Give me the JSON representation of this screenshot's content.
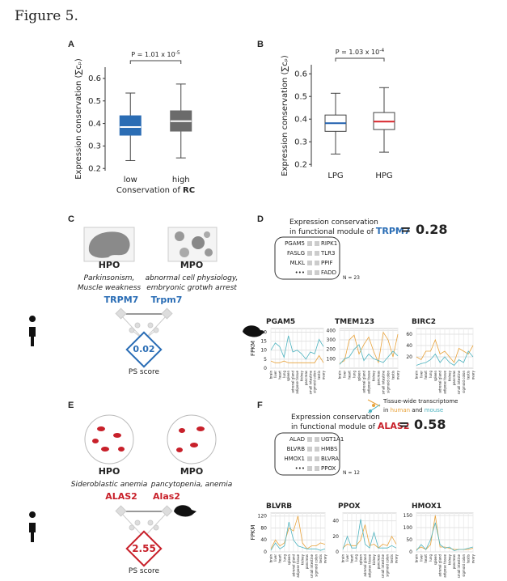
{
  "figure_title": "Figure 5.",
  "chart_data": [
    {
      "type": "box",
      "panel": "A",
      "p_value": "P = 1.01 x 10",
      "p_exponent": "-5",
      "ylabel": "Expression conservation (∑cₚ)",
      "xlabel": "Conservation of",
      "xlabel_bold": "RC",
      "categories": [
        "low",
        "high"
      ],
      "boxes": [
        {
          "whisker_low": 0.235,
          "q1": 0.348,
          "median": 0.384,
          "q3": 0.434,
          "whisker_high": 0.535,
          "fill": "#2b6db4",
          "median_color": "#ffffff"
        },
        {
          "whisker_low": 0.247,
          "q1": 0.366,
          "median": 0.41,
          "q3": 0.456,
          "whisker_high": 0.575,
          "fill": "#6b6b6b",
          "median_color": "#ffffff"
        }
      ],
      "ylim": [
        0.19,
        0.65
      ],
      "yticks": [
        0.2,
        0.3,
        0.4,
        0.5,
        0.6
      ]
    },
    {
      "type": "box",
      "panel": "B",
      "p_value": "P = 1.03 x 10",
      "p_exponent": "-4",
      "ylabel": "Expression conservation (∑cₚ)",
      "categories": [
        "LPG",
        "HPG"
      ],
      "boxes": [
        {
          "whisker_low": 0.246,
          "q1": 0.346,
          "median": 0.382,
          "q3": 0.418,
          "whisker_high": 0.514,
          "fill": "#ffffff",
          "median_color": "#1f5fae"
        },
        {
          "whisker_low": 0.254,
          "q1": 0.354,
          "median": 0.389,
          "q3": 0.429,
          "whisker_high": 0.539,
          "fill": "#ffffff",
          "median_color": "#d7262b"
        }
      ],
      "ylim": [
        0.19,
        0.64
      ],
      "yticks": [
        0.2,
        0.3,
        0.4,
        0.5,
        0.6
      ]
    },
    {
      "type": "line",
      "title": "PGAM5",
      "ylabel": "FPKM",
      "categories": [
        "brain",
        "liver",
        "heart",
        "lung",
        "spleen",
        "adrenal gland",
        "adipose tissue",
        "kidney",
        "pancreas",
        "small intestine",
        "sigmoid colon",
        "testis",
        "ovary"
      ],
      "series": [
        {
          "name": "human",
          "color": "#e8a23a",
          "values": [
            4,
            3,
            3,
            4,
            3,
            3,
            3,
            3,
            3,
            3,
            3,
            7,
            3
          ]
        },
        {
          "name": "mouse",
          "color": "#4db3bf",
          "values": [
            10,
            14,
            12,
            6,
            18,
            9,
            10,
            8,
            5,
            9,
            8,
            16,
            12
          ]
        }
      ],
      "ylim": [
        0,
        22
      ],
      "yticks": [
        0,
        5,
        10,
        15,
        20
      ],
      "grid": true
    },
    {
      "type": "line",
      "title": "TMEM123",
      "categories": [
        "brain",
        "liver",
        "heart",
        "lung",
        "spleen",
        "adrenal gland",
        "adipose tissue",
        "kidney",
        "pancreas",
        "small intestine",
        "sigmoid colon",
        "testis",
        "ovary"
      ],
      "series": [
        {
          "color": "#e8a23a",
          "values": [
            50,
            80,
            300,
            350,
            150,
            250,
            330,
            180,
            60,
            380,
            300,
            120,
            360
          ]
        },
        {
          "color": "#4db3bf",
          "values": [
            40,
            100,
            120,
            200,
            250,
            80,
            150,
            100,
            80,
            60,
            120,
            180,
            130
          ]
        }
      ],
      "ylim": [
        0,
        420
      ],
      "yticks": [
        100,
        200,
        300,
        400
      ],
      "grid": true
    },
    {
      "type": "line",
      "title": "BIRC2",
      "categories": [
        "brain",
        "liver",
        "heart",
        "lung",
        "spleen",
        "adrenal gland",
        "adipose tissue",
        "kidney",
        "pancreas",
        "small intestine",
        "sigmoid colon",
        "testis",
        "ovary"
      ],
      "series": [
        {
          "color": "#e8a23a",
          "values": [
            20,
            15,
            30,
            30,
            50,
            25,
            30,
            20,
            10,
            35,
            30,
            25,
            40
          ]
        },
        {
          "color": "#4db3bf",
          "values": [
            5,
            8,
            10,
            15,
            25,
            10,
            20,
            10,
            5,
            15,
            10,
            30,
            20
          ]
        }
      ],
      "ylim": [
        0,
        70
      ],
      "yticks": [
        20,
        40,
        60
      ],
      "grid": true
    },
    {
      "type": "line",
      "title": "BLVRB",
      "ylabel": "FPKM",
      "categories": [
        "brain",
        "liver",
        "heart",
        "lung",
        "spleen",
        "adrenal gland",
        "adipose tissue",
        "kidney",
        "pancreas",
        "small intestine",
        "sigmoid colon",
        "testis",
        "ovary"
      ],
      "series": [
        {
          "color": "#e8a23a",
          "values": [
            10,
            40,
            20,
            30,
            80,
            70,
            120,
            30,
            10,
            20,
            20,
            30,
            25
          ]
        },
        {
          "color": "#4db3bf",
          "values": [
            5,
            30,
            10,
            20,
            100,
            40,
            20,
            15,
            10,
            10,
            10,
            5,
            10
          ]
        }
      ],
      "ylim": [
        0,
        130
      ],
      "yticks": [
        0,
        40,
        80,
        120
      ],
      "grid": true
    },
    {
      "type": "line",
      "title": "PPOX",
      "categories": [
        "brain",
        "liver",
        "heart",
        "lung",
        "spleen",
        "adrenal gland",
        "adipose tissue",
        "kidney",
        "pancreas",
        "small intestine",
        "sigmoid colon",
        "testis",
        "ovary"
      ],
      "series": [
        {
          "color": "#e8a23a",
          "values": [
            5,
            10,
            8,
            8,
            15,
            35,
            8,
            10,
            5,
            10,
            8,
            20,
            10
          ]
        },
        {
          "color": "#4db3bf",
          "values": [
            3,
            20,
            5,
            5,
            42,
            10,
            5,
            25,
            5,
            5,
            5,
            8,
            5
          ]
        }
      ],
      "ylim": [
        0,
        50
      ],
      "yticks": [
        0,
        20,
        40
      ],
      "grid": true
    },
    {
      "type": "line",
      "title": "HMOX1",
      "categories": [
        "brain",
        "liver",
        "heart",
        "lung",
        "spleen",
        "adrenal gland",
        "adipose tissue",
        "kidney",
        "pancreas",
        "small intestine",
        "sigmoid colon",
        "testis",
        "ovary"
      ],
      "series": [
        {
          "color": "#e8a23a",
          "values": [
            10,
            20,
            10,
            30,
            150,
            20,
            20,
            15,
            10,
            10,
            10,
            10,
            15
          ]
        },
        {
          "color": "#4db3bf",
          "values": [
            5,
            30,
            10,
            50,
            120,
            30,
            15,
            20,
            5,
            10,
            10,
            15,
            20
          ]
        }
      ],
      "ylim": [
        0,
        160
      ],
      "yticks": [
        0,
        50,
        100,
        150
      ],
      "grid": true
    }
  ],
  "panels": {
    "C": {
      "label": "C",
      "left_title": "HPO",
      "left_description": [
        "Parkinsonism,",
        "Muscle weakness"
      ],
      "right_title": "MPO",
      "right_description": [
        "abnormal cell physiology,",
        "embryonic grotwh arrest"
      ],
      "human_gene": "TRPM7",
      "mouse_gene": "Trpm7",
      "ps_score": 0.02,
      "ps_label": "PS score"
    },
    "D": {
      "label": "D",
      "heading": [
        "Expression conservation",
        "in functional module of"
      ],
      "gene": "TRPM7",
      "score_prefix": "=",
      "score": 0.28,
      "module_left": [
        "PGAM5",
        "FASLG",
        "MLKL",
        "•••"
      ],
      "module_right": [
        "RIPK1",
        "TLR3",
        "PPIF",
        "FADD"
      ],
      "n": "N = 23",
      "legend": [
        "Tissue-wide transcriptome",
        "in",
        "and"
      ]
    },
    "E": {
      "label": "E",
      "left_title": "HPO",
      "left_description": [
        "Sideroblastic anemia"
      ],
      "right_title": "MPO",
      "right_description": [
        "pancytopenia, anemia"
      ],
      "human_gene": "ALAS2",
      "mouse_gene": "Alas2",
      "ps_score": 2.55,
      "ps_label": "PS score"
    },
    "F": {
      "label": "F",
      "heading": [
        "Expression conservation",
        "in functional module of"
      ],
      "gene": "ALAS2",
      "score_prefix": "=",
      "score": 0.58,
      "module_left": [
        "ALAD",
        "BLVRB",
        "HMOX1",
        "•••"
      ],
      "module_right": [
        "UGT1A1",
        "HMBS",
        "BLVRA",
        "PPOX"
      ],
      "n": "N = 12"
    }
  }
}
